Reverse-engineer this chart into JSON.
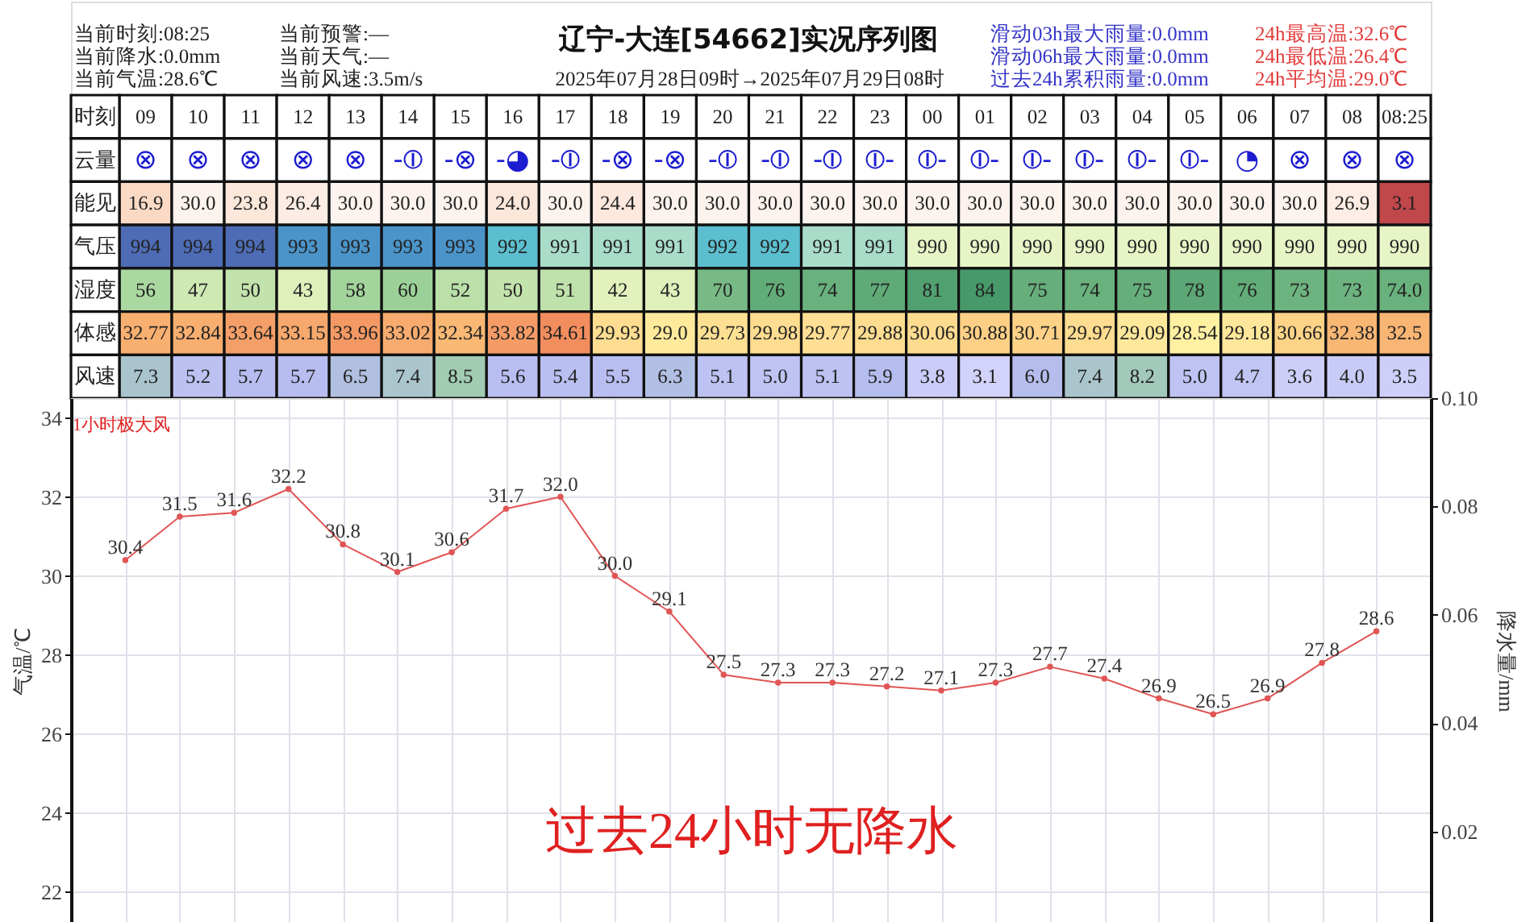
{
  "chart_data": [
    {
      "type": "heatmap",
      "title": "辽宁-大连[54662]实况序列图",
      "subtitle": "2025年07月28日09时→2025年07月29日08时",
      "xlabel": "时刻",
      "annotations": [
        "当前时刻:08:25",
        "当前降水:0.0mm",
        "当前气温:28.6℃",
        "当前预警:—",
        "当前天气:—",
        "当前风速:3.5m/s",
        "滑动03h最大雨量:0.0mm",
        "滑动06h最大雨量:0.0mm",
        "过去24h累积雨量:0.0mm",
        "24h最高温:32.6℃",
        "24h最低温:26.4℃",
        "24h平均温:29.0℃"
      ],
      "categories": [
        "09",
        "10",
        "11",
        "12",
        "13",
        "14",
        "15",
        "16",
        "17",
        "18",
        "19",
        "20",
        "21",
        "22",
        "23",
        "00",
        "01",
        "02",
        "03",
        "04",
        "05",
        "06",
        "07",
        "08",
        "08:25"
      ],
      "y_categories": [
        "云量",
        "能见",
        "气压",
        "湿度",
        "体感",
        "风速"
      ],
      "cells": [
        [
          null,
          null,
          null,
          null,
          null,
          null,
          null,
          null,
          null,
          null,
          null,
          null,
          null,
          null,
          null,
          null,
          null,
          null,
          null,
          null,
          null,
          null,
          null,
          null,
          null
        ],
        [
          16.9,
          30.0,
          23.8,
          26.4,
          30.0,
          30.0,
          30.0,
          24.0,
          30.0,
          24.4,
          30.0,
          30.0,
          30.0,
          30.0,
          30.0,
          30.0,
          30.0,
          30.0,
          30.0,
          30.0,
          30.0,
          30.0,
          30.0,
          26.9,
          3.1
        ],
        [
          994,
          994,
          994,
          993,
          993,
          993,
          993,
          992,
          991,
          991,
          991,
          992,
          992,
          991,
          991,
          990,
          990,
          990,
          990,
          990,
          990,
          990,
          990,
          990,
          990
        ],
        [
          56,
          47,
          50,
          43,
          58,
          60,
          52,
          50,
          51,
          42,
          43,
          70,
          76,
          74,
          77,
          81,
          84,
          75,
          74,
          75,
          78,
          76,
          73,
          73,
          74.0
        ],
        [
          32.77,
          32.84,
          33.64,
          33.15,
          33.96,
          33.02,
          32.34,
          33.82,
          34.61,
          29.93,
          29.0,
          29.73,
          29.98,
          29.77,
          29.88,
          30.06,
          30.88,
          30.71,
          29.97,
          29.09,
          28.54,
          29.18,
          30.66,
          32.38,
          32.5
        ],
        [
          7.3,
          5.2,
          5.7,
          5.7,
          6.5,
          7.4,
          8.5,
          5.6,
          5.4,
          5.5,
          6.3,
          5.1,
          5.0,
          5.1,
          5.9,
          3.8,
          3.1,
          6.0,
          7.4,
          8.2,
          5.0,
          4.7,
          3.6,
          4.0,
          3.5
        ]
      ],
      "cell_labels": [
        [
          "⊗",
          "⊗",
          "⊗",
          "⊗",
          "⊗",
          "-⦶",
          "-⊗",
          "-◕",
          "-⦶",
          "-⊗",
          "-⊗",
          "-⦶",
          "-⦶",
          "-⦶",
          "⦶-",
          "⦶-",
          "⦶-",
          "⦶-",
          "⦶-",
          "⦶-",
          "⦶-",
          "◔",
          "⊗",
          "⊗",
          "⊗"
        ],
        [
          "16.9",
          "30.0",
          "23.8",
          "26.4",
          "30.0",
          "30.0",
          "30.0",
          "24.0",
          "30.0",
          "24.4",
          "30.0",
          "30.0",
          "30.0",
          "30.0",
          "30.0",
          "30.0",
          "30.0",
          "30.0",
          "30.0",
          "30.0",
          "30.0",
          "30.0",
          "30.0",
          "26.9",
          "3.1"
        ],
        [
          "994",
          "994",
          "994",
          "993",
          "993",
          "993",
          "993",
          "992",
          "991",
          "991",
          "991",
          "992",
          "992",
          "991",
          "991",
          "990",
          "990",
          "990",
          "990",
          "990",
          "990",
          "990",
          "990",
          "990",
          "990"
        ],
        [
          "56",
          "47",
          "50",
          "43",
          "58",
          "60",
          "52",
          "50",
          "51",
          "42",
          "43",
          "70",
          "76",
          "74",
          "77",
          "81",
          "84",
          "75",
          "74",
          "75",
          "78",
          "76",
          "73",
          "73",
          "74.0"
        ],
        [
          "32.77",
          "32.84",
          "33.64",
          "33.15",
          "33.96",
          "33.02",
          "32.34",
          "33.82",
          "34.61",
          "29.93",
          "29.0",
          "29.73",
          "29.98",
          "29.77",
          "29.88",
          "30.06",
          "30.88",
          "30.71",
          "29.97",
          "29.09",
          "28.54",
          "29.18",
          "30.66",
          "32.38",
          "32.5"
        ],
        [
          "7.3",
          "5.2",
          "5.7",
          "5.7",
          "6.5",
          "7.4",
          "8.5",
          "5.6",
          "5.4",
          "5.5",
          "6.3",
          "5.1",
          "5.0",
          "5.1",
          "5.9",
          "3.8",
          "3.1",
          "6.0",
          "7.4",
          "8.2",
          "5.0",
          "4.7",
          "3.6",
          "4.0",
          "3.5"
        ]
      ]
    },
    {
      "type": "line",
      "categories": [
        null,
        null,
        null,
        null,
        null,
        null,
        null,
        null,
        null,
        null,
        null,
        null,
        null,
        null,
        null,
        null,
        null,
        null,
        null,
        null,
        null,
        null,
        null,
        null
      ],
      "series": [
        {
          "color": "#e05555",
          "values": [
            30.4,
            31.5,
            31.6,
            32.2,
            30.8,
            30.1,
            30.6,
            31.7,
            32.0,
            30.0,
            29.1,
            27.5,
            27.3,
            27.3,
            27.2,
            27.1,
            27.3,
            27.7,
            27.4,
            26.9,
            26.5,
            26.9,
            27.8,
            28.6
          ],
          "value_labels": [
            "30.4",
            "31.5",
            "31.6",
            "32.2",
            "30.8",
            "30.1",
            "30.6",
            "31.7",
            "32.0",
            "30.0",
            "29.1",
            "27.5",
            "27.3",
            "27.3",
            "27.2",
            "27.1",
            "27.3",
            "27.7",
            "27.4",
            "26.9",
            "26.5",
            "26.9",
            "27.8",
            "28.6"
          ]
        }
      ],
      "ylabel": "气温/℃",
      "ylim": [
        21.2,
        34.5
      ],
      "yticks": [
        22,
        24,
        26,
        28,
        30,
        32,
        34
      ],
      "y2label": "降水量/mm",
      "y2lim": [
        0.003,
        0.1
      ],
      "y2ticks": [
        0.02,
        0.04,
        0.06,
        0.08,
        {
          "value": 0.1,
          "label": "0.10"
        }
      ],
      "marker": "circle",
      "grid": true,
      "annotations": [
        "1小时极大风",
        "过去24小时无降水"
      ]
    }
  ]
}
